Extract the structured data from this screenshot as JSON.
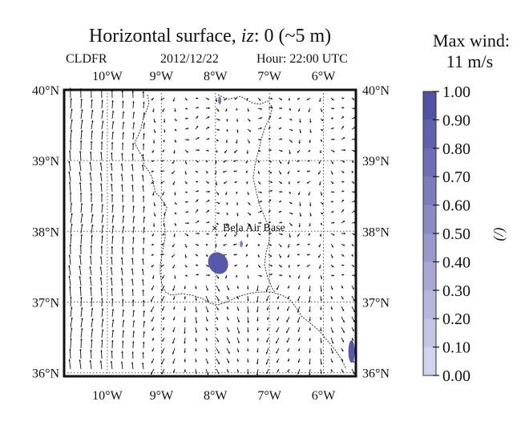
{
  "chart_data": {
    "type": "vector_field_map",
    "title_prefix": "Horizontal surface, ",
    "title_var": "iz",
    "title_suffix": ": 0 (~5 m)",
    "model": "CLDFR",
    "date": "2012/12/22",
    "hour": "Hour: 22:00 UTC",
    "lon_ticks": [
      "10°W",
      "9°W",
      "8°W",
      "7°W",
      "6°W"
    ],
    "lat_ticks": [
      "40°N",
      "39°N",
      "38°N",
      "37°N",
      "36°N"
    ],
    "lon_range": [
      -10.8,
      -5.4
    ],
    "lat_range": [
      35.95,
      40.0
    ],
    "grid": true,
    "annotation": {
      "label": "Beja Air Base",
      "lon": -7.92,
      "lat": 38.08
    },
    "max_wind_label": "Max wind:",
    "max_wind_value": "11 m/s",
    "colorbar": {
      "label": "(/)",
      "ticks": [
        "1.00",
        "0.90",
        "0.80",
        "0.70",
        "0.60",
        "0.50",
        "0.40",
        "0.30",
        "0.20",
        "0.10",
        "0.00"
      ],
      "range": [
        0.0,
        1.0
      ],
      "colors": {
        "low": "#d9daf0",
        "high": "#4a4aa2"
      }
    },
    "cloud_fraction_areas": [
      {
        "lon": -7.95,
        "lat": 37.55,
        "value": 0.9
      },
      {
        "lon": -7.92,
        "lat": 39.85,
        "value": 0.7
      },
      {
        "lon": -7.52,
        "lat": 37.82,
        "value": 0.6
      },
      {
        "lon": -5.48,
        "lat": 36.3,
        "value": 0.9
      }
    ]
  }
}
